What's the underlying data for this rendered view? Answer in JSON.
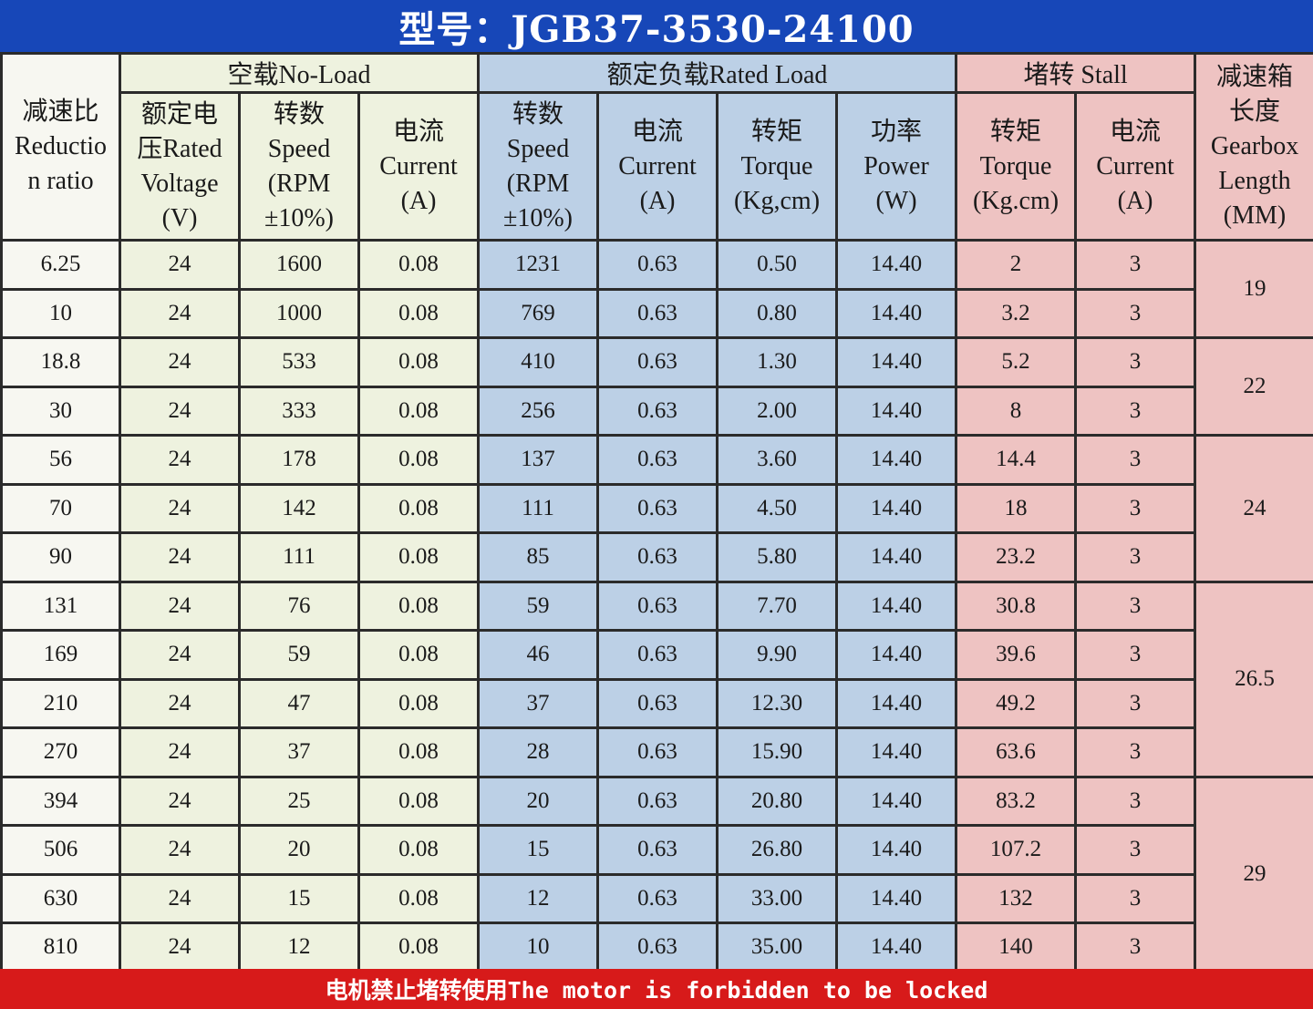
{
  "title": "型号：JGB37-3530-24100",
  "groups": {
    "no_load": "空载No-Load",
    "rated_load": "额定负载Rated Load",
    "stall": "堵转 Stall",
    "gearbox_length": "减速箱\n长度\nGearbox\nLength\n(MM)"
  },
  "headers": {
    "reduction": "减速比\nReductio\nn ratio",
    "rated_voltage": "额定电\n压Rated\nVoltage\n(V)",
    "nl_speed": "转数\nSpeed\n(RPM\n±10%)",
    "nl_current": "电流\nCurrent\n(A)",
    "rl_speed": "转数\nSpeed\n(RPM\n±10%)",
    "rl_current": "电流\nCurrent\n(A)",
    "rl_torque": "转矩\nTorque\n(Kg,cm)",
    "rl_power": "功率\nPower\n(W)",
    "st_torque": "转矩\nTorque\n(Kg.cm)",
    "st_current": "电流\nCurrent\n(A)"
  },
  "rows": [
    [
      "6.25",
      "24",
      "1600",
      "0.08",
      "1231",
      "0.63",
      "0.50",
      "14.40",
      "2",
      "3"
    ],
    [
      "10",
      "24",
      "1000",
      "0.08",
      "769",
      "0.63",
      "0.80",
      "14.40",
      "3.2",
      "3"
    ],
    [
      "18.8",
      "24",
      "533",
      "0.08",
      "410",
      "0.63",
      "1.30",
      "14.40",
      "5.2",
      "3"
    ],
    [
      "30",
      "24",
      "333",
      "0.08",
      "256",
      "0.63",
      "2.00",
      "14.40",
      "8",
      "3"
    ],
    [
      "56",
      "24",
      "178",
      "0.08",
      "137",
      "0.63",
      "3.60",
      "14.40",
      "14.4",
      "3"
    ],
    [
      "70",
      "24",
      "142",
      "0.08",
      "111",
      "0.63",
      "4.50",
      "14.40",
      "18",
      "3"
    ],
    [
      "90",
      "24",
      "111",
      "0.08",
      "85",
      "0.63",
      "5.80",
      "14.40",
      "23.2",
      "3"
    ],
    [
      "131",
      "24",
      "76",
      "0.08",
      "59",
      "0.63",
      "7.70",
      "14.40",
      "30.8",
      "3"
    ],
    [
      "169",
      "24",
      "59",
      "0.08",
      "46",
      "0.63",
      "9.90",
      "14.40",
      "39.6",
      "3"
    ],
    [
      "210",
      "24",
      "47",
      "0.08",
      "37",
      "0.63",
      "12.30",
      "14.40",
      "49.2",
      "3"
    ],
    [
      "270",
      "24",
      "37",
      "0.08",
      "28",
      "0.63",
      "15.90",
      "14.40",
      "63.6",
      "3"
    ],
    [
      "394",
      "24",
      "25",
      "0.08",
      "20",
      "0.63",
      "20.80",
      "14.40",
      "83.2",
      "3"
    ],
    [
      "506",
      "24",
      "20",
      "0.08",
      "15",
      "0.63",
      "26.80",
      "14.40",
      "107.2",
      "3"
    ],
    [
      "630",
      "24",
      "15",
      "0.08",
      "12",
      "0.63",
      "33.00",
      "14.40",
      "132",
      "3"
    ],
    [
      "810",
      "24",
      "12",
      "0.08",
      "10",
      "0.63",
      "35.00",
      "14.40",
      "140",
      "3"
    ]
  ],
  "gearbox_lengths": [
    {
      "value": "19",
      "rows": 2
    },
    {
      "value": "22",
      "rows": 2
    },
    {
      "value": "24",
      "rows": 3
    },
    {
      "value": "26.5",
      "rows": 4
    },
    {
      "value": "29",
      "rows": 4
    }
  ],
  "footer": "电机禁止堵转使用The motor is forbidden to be locked",
  "colors": {
    "title_bg": "#1747b8",
    "footer_bg": "#d71a1a",
    "no_load_bg": "#eef2df",
    "rated_load_bg": "#bcd0e6",
    "stall_bg": "#eec3c2"
  }
}
